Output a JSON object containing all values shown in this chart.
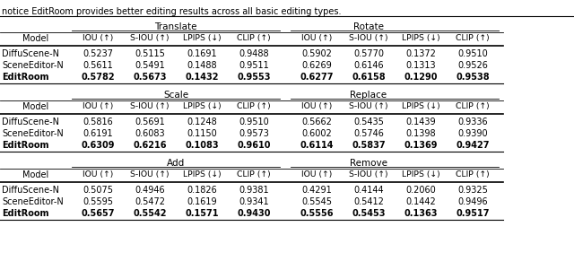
{
  "caption": "notice EditRoom provides better editing results across all basic editing types.",
  "sections": [
    {
      "left_title": "Translate",
      "right_title": "Rotate",
      "col_headers": [
        "IOU (↑)",
        "S-IOU (↑)",
        "LPIPS (↓)",
        "CLIP (↑)"
      ],
      "rows": [
        {
          "model": "DiffuScene-N",
          "left": [
            "0.5237",
            "0.5115",
            "0.1691",
            "0.9488"
          ],
          "right": [
            "0.5902",
            "0.5770",
            "0.1372",
            "0.9510"
          ]
        },
        {
          "model": "SceneEditor-N",
          "left": [
            "0.5611",
            "0.5491",
            "0.1488",
            "0.9511"
          ],
          "right": [
            "0.6269",
            "0.6146",
            "0.1313",
            "0.9526"
          ]
        },
        {
          "model": "EditRoom",
          "left": [
            "0.5782",
            "0.5673",
            "0.1432",
            "0.9553"
          ],
          "right": [
            "0.6277",
            "0.6158",
            "0.1290",
            "0.9538"
          ],
          "bold": true
        }
      ]
    },
    {
      "left_title": "Scale",
      "right_title": "Replace",
      "col_headers": [
        "IOU (↑)",
        "S-IOU (↑)",
        "LPIPS (↓)",
        "CLIP (↑)"
      ],
      "rows": [
        {
          "model": "DiffuScene-N",
          "left": [
            "0.5816",
            "0.5691",
            "0.1248",
            "0.9510"
          ],
          "right": [
            "0.5662",
            "0.5435",
            "0.1439",
            "0.9336"
          ]
        },
        {
          "model": "SceneEditor-N",
          "left": [
            "0.6191",
            "0.6083",
            "0.1150",
            "0.9573"
          ],
          "right": [
            "0.6002",
            "0.5746",
            "0.1398",
            "0.9390"
          ]
        },
        {
          "model": "EditRoom",
          "left": [
            "0.6309",
            "0.6216",
            "0.1083",
            "0.9610"
          ],
          "right": [
            "0.6114",
            "0.5837",
            "0.1369",
            "0.9427"
          ],
          "bold": true
        }
      ]
    },
    {
      "left_title": "Add",
      "right_title": "Remove",
      "col_headers": [
        "IOU (↑)",
        "S-IOU (↑)",
        "LPIPS (↓)",
        "CLIP (↑)"
      ],
      "rows": [
        {
          "model": "DiffuScene-N",
          "left": [
            "0.5075",
            "0.4946",
            "0.1826",
            "0.9381"
          ],
          "right": [
            "0.4291",
            "0.4144",
            "0.2060",
            "0.9325"
          ]
        },
        {
          "model": "SceneEditor-N",
          "left": [
            "0.5595",
            "0.5472",
            "0.1619",
            "0.9341"
          ],
          "right": [
            "0.5545",
            "0.5412",
            "0.1442",
            "0.9496"
          ]
        },
        {
          "model": "EditRoom",
          "left": [
            "0.5657",
            "0.5542",
            "0.1571",
            "0.9430"
          ],
          "right": [
            "0.5556",
            "0.5453",
            "0.1363",
            "0.9517"
          ],
          "bold": true
        }
      ]
    }
  ],
  "bg_color": "#ffffff",
  "text_color": "#000000",
  "font_size": 7.0,
  "header_font_size": 7.0,
  "title_font_size": 7.5
}
